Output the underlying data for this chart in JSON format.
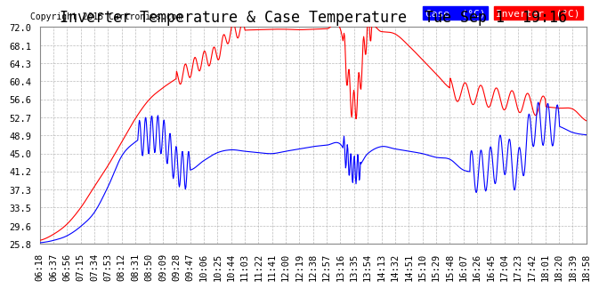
{
  "title": "Inverter Temperature & Case Temperature  Tue Sep 1  19:16",
  "copyright": "Copyright 2015 Cartronics.com",
  "yticks": [
    25.8,
    29.6,
    33.5,
    37.3,
    41.2,
    45.0,
    48.9,
    52.7,
    56.6,
    60.4,
    64.3,
    68.1,
    72.0
  ],
  "xtick_labels": [
    "06:18",
    "06:37",
    "06:56",
    "07:15",
    "07:34",
    "07:53",
    "08:12",
    "08:31",
    "08:50",
    "09:09",
    "09:28",
    "09:47",
    "10:06",
    "10:25",
    "10:44",
    "11:03",
    "11:22",
    "11:41",
    "12:00",
    "12:19",
    "12:38",
    "12:57",
    "13:16",
    "13:35",
    "13:54",
    "14:13",
    "14:32",
    "14:51",
    "15:10",
    "15:29",
    "15:48",
    "16:07",
    "16:26",
    "16:45",
    "17:04",
    "17:23",
    "17:42",
    "18:01",
    "18:20",
    "18:39",
    "18:58"
  ],
  "bg_color": "#ffffff",
  "plot_bg": "#ffffff",
  "grid_color": "#aaaaaa",
  "case_color": "#0000ff",
  "inv_color": "#ff0000",
  "ylim": [
    25.8,
    72.0
  ],
  "title_fontsize": 12,
  "tick_fontsize": 7.5,
  "red_data": [
    26.5,
    27.8,
    30.0,
    33.5,
    38.0,
    42.5,
    47.5,
    52.5,
    56.5,
    59.0,
    61.0,
    63.0,
    65.0,
    66.5,
    71.0,
    71.3,
    71.4,
    71.5,
    71.5,
    71.4,
    71.5,
    71.6,
    71.5,
    55.0,
    71.3,
    71.0,
    70.5,
    68.0,
    65.0,
    62.0,
    59.0,
    58.0,
    57.5,
    57.0,
    56.5,
    56.0,
    55.5,
    55.0,
    54.7,
    54.5,
    52.0
  ],
  "blue_data": [
    26.0,
    26.5,
    27.5,
    29.5,
    32.5,
    38.0,
    44.5,
    47.5,
    49.0,
    48.5,
    42.5,
    41.5,
    43.5,
    45.2,
    45.8,
    45.5,
    45.2,
    45.0,
    45.5,
    46.0,
    46.5,
    46.8,
    47.0,
    41.5,
    45.0,
    46.5,
    46.0,
    45.5,
    45.0,
    44.2,
    43.8,
    41.5,
    41.2,
    42.0,
    45.0,
    41.5,
    50.5,
    51.2,
    50.8,
    49.5,
    49.0
  ]
}
